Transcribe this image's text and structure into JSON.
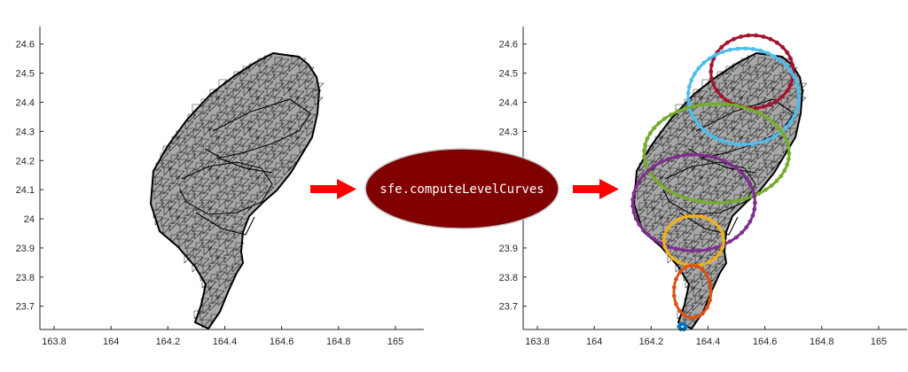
{
  "function_label": "sfe.computeLevelCurves",
  "colors": {
    "mesh_fill": "#a8a8a8",
    "mesh_line": "#000000",
    "arrow": "#ff0000",
    "ellipse_fill": "#800000",
    "ellipse_stroke": "#c8c8c8",
    "axis": "#262626"
  },
  "chart_data": [
    {
      "type": "scatter",
      "title": "",
      "xlabel": "",
      "ylabel": "",
      "xlim": [
        163.75,
        165.1
      ],
      "ylim": [
        23.62,
        24.66
      ],
      "x_ticks": [
        "163.8",
        "164",
        "164.2",
        "164.4",
        "164.6",
        "164.8",
        "165"
      ],
      "y_ticks": [
        "24.6",
        "24.5",
        "24.4",
        "24.3",
        "24.2",
        "24.1",
        "24",
        "23.9",
        "23.8",
        "23.7"
      ],
      "x_tick_values": [
        163.8,
        164.0,
        164.2,
        164.4,
        164.6,
        164.8,
        165.0
      ],
      "y_tick_values": [
        24.6,
        24.5,
        24.4,
        24.3,
        24.2,
        24.1,
        24.0,
        23.9,
        23.8,
        23.7
      ],
      "grid": false,
      "series": []
    },
    {
      "type": "scatter",
      "title": "",
      "xlabel": "",
      "ylabel": "",
      "xlim": [
        163.75,
        165.1
      ],
      "ylim": [
        23.62,
        24.66
      ],
      "x_ticks": [
        "163.8",
        "164",
        "164.2",
        "164.4",
        "164.6",
        "164.8",
        "165"
      ],
      "y_ticks": [
        "24.6",
        "24.5",
        "24.4",
        "24.3",
        "24.2",
        "24.1",
        "24",
        "23.9",
        "23.8",
        "23.7"
      ],
      "x_tick_values": [
        163.8,
        164.0,
        164.2,
        164.4,
        164.6,
        164.8,
        165.0
      ],
      "y_tick_values": [
        24.6,
        24.5,
        24.4,
        24.3,
        24.2,
        24.1,
        24.0,
        23.9,
        23.8,
        23.7
      ],
      "grid": false,
      "series": [
        {
          "color": "#a2142f",
          "cx": 164.555,
          "cy": 24.505,
          "rx": 0.145,
          "ry": 0.125
        },
        {
          "color": "#4dbeee",
          "cx": 164.525,
          "cy": 24.42,
          "rx": 0.195,
          "ry": 0.165
        },
        {
          "color": "#77ac30",
          "cx": 164.43,
          "cy": 24.225,
          "rx": 0.255,
          "ry": 0.17
        },
        {
          "color": "#7e2f8e",
          "cx": 164.35,
          "cy": 24.055,
          "rx": 0.215,
          "ry": 0.165
        },
        {
          "color": "#edb120",
          "cx": 164.35,
          "cy": 23.925,
          "rx": 0.105,
          "ry": 0.085
        },
        {
          "color": "#d95319",
          "cx": 164.345,
          "cy": 23.75,
          "rx": 0.065,
          "ry": 0.09
        },
        {
          "color": "#0072bd",
          "cx": 164.31,
          "cy": 23.63,
          "rx": 0.012,
          "ry": 0.01
        }
      ]
    }
  ]
}
